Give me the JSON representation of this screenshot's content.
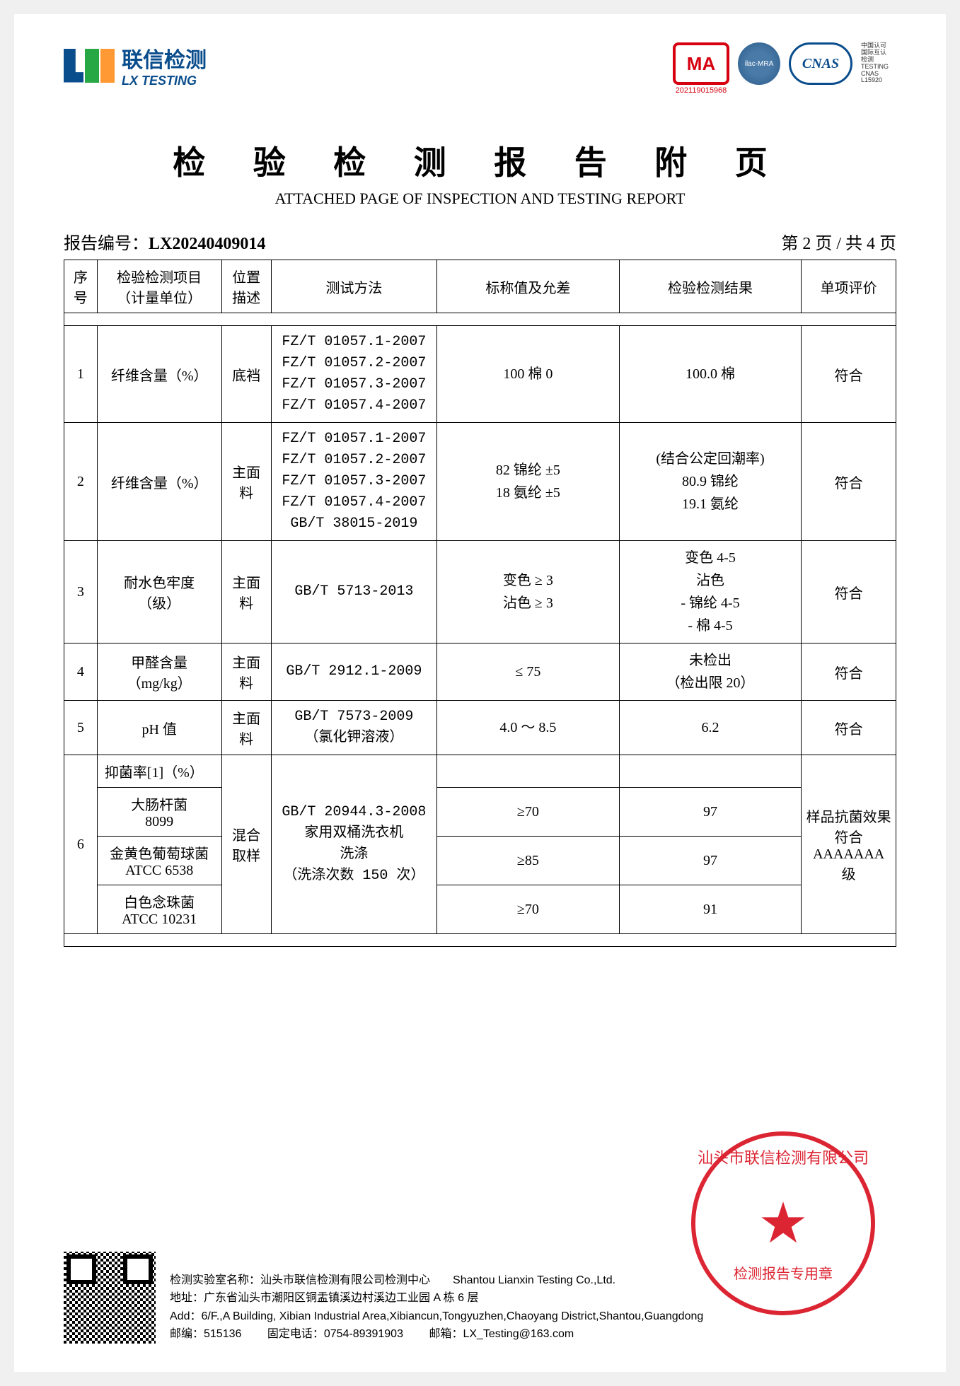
{
  "logo": {
    "cn": "联信检测",
    "en": "LX TESTING"
  },
  "certs": {
    "ma": "MA",
    "ma_num": "202119015968",
    "ilac": "ilac-MRA",
    "cnas": "CNAS",
    "cnas_side": "中国认可\n国际互认\n检测\nTESTING\nCNAS L15920"
  },
  "title": {
    "cn": "检 验 检 测 报 告 附 页",
    "en": "ATTACHED PAGE OF INSPECTION AND TESTING REPORT"
  },
  "report": {
    "label": "报告编号：",
    "number": "LX20240409014",
    "page": "第 2 页 / 共 4 页"
  },
  "headers": {
    "seq": "序号",
    "item": "检验检测项目\n（计量单位）",
    "pos": "位置描述",
    "method": "测试方法",
    "nominal": "标称值及允差",
    "result": "检验检测结果",
    "eval": "单项评价"
  },
  "rows": [
    {
      "seq": "1",
      "item": "纤维含量（%）",
      "pos": "底裆",
      "method": "FZ/T 01057.1-2007\nFZ/T 01057.2-2007\nFZ/T 01057.3-2007\nFZ/T 01057.4-2007",
      "nominal": "100  棉  0",
      "result": "100.0  棉",
      "eval": "符合"
    },
    {
      "seq": "2",
      "item": "纤维含量（%）",
      "pos": "主面料",
      "method": "FZ/T 01057.1-2007\nFZ/T 01057.2-2007\nFZ/T 01057.3-2007\nFZ/T 01057.4-2007\nGB/T 38015-2019",
      "nominal": "82  锦纶  ±5\n18  氨纶  ±5",
      "result": "(结合公定回潮率)\n80.9  锦纶\n19.1  氨纶",
      "eval": "符合"
    },
    {
      "seq": "3",
      "item": "耐水色牢度\n（级）",
      "pos": "主面料",
      "method": "GB/T 5713-2013",
      "nominal": "变色  ≥ 3\n沾色  ≥ 3",
      "result": "变色      4-5\n沾色\n- 锦纶    4-5\n- 棉      4-5",
      "eval": "符合"
    },
    {
      "seq": "4",
      "item": "甲醛含量\n（mg/kg）",
      "pos": "主面料",
      "method": "GB/T 2912.1-2009",
      "nominal": "≤ 75",
      "result": "未检出\n（检出限 20）",
      "eval": "符合"
    },
    {
      "seq": "5",
      "item": "pH 值",
      "pos": "主面料",
      "method": "GB/T 7573-2009\n（氯化钾溶液）",
      "nominal": "4.0 ～ 8.5",
      "result": "6.2",
      "eval": "符合"
    }
  ],
  "row6": {
    "seq": "6",
    "header_item": "抑菌率[1]（%）",
    "pos": "混合取样",
    "method": "GB/T 20944.3-2008\n家用双桶洗衣机\n洗涤\n（洗涤次数 150 次）",
    "eval": "样品抗菌效果符合AAAAAAA级",
    "subs": [
      {
        "name": "大肠杆菌\n8099",
        "nominal": "≥70",
        "result": "97"
      },
      {
        "name": "金黄色葡萄球菌\nATCC 6538",
        "nominal": "≥85",
        "result": "97"
      },
      {
        "name": "白色念珠菌\nATCC 10231",
        "nominal": "≥70",
        "result": "91"
      }
    ]
  },
  "footer": {
    "lab_cn": "检测实验室名称：汕头市联信检测有限公司检测中心",
    "lab_en": "Shantou Lianxin Testing Co.,Ltd.",
    "addr_cn": "地址：广东省汕头市潮阳区铜盂镇溪边村溪边工业园 A 栋 6 层",
    "addr_en": "Add：6/F.,A Building, Xibian Industrial Area,Xibiancun,Tongyuzhen,Chaoyang District,Shantou,Guangdong",
    "post": "邮编：515136",
    "tel": "固定电话：0754-89391903",
    "email": "邮箱：LX_Testing@163.com"
  },
  "stamp": {
    "top": "汕头市联信检测有限公司",
    "bottom": "检测报告专用章"
  }
}
